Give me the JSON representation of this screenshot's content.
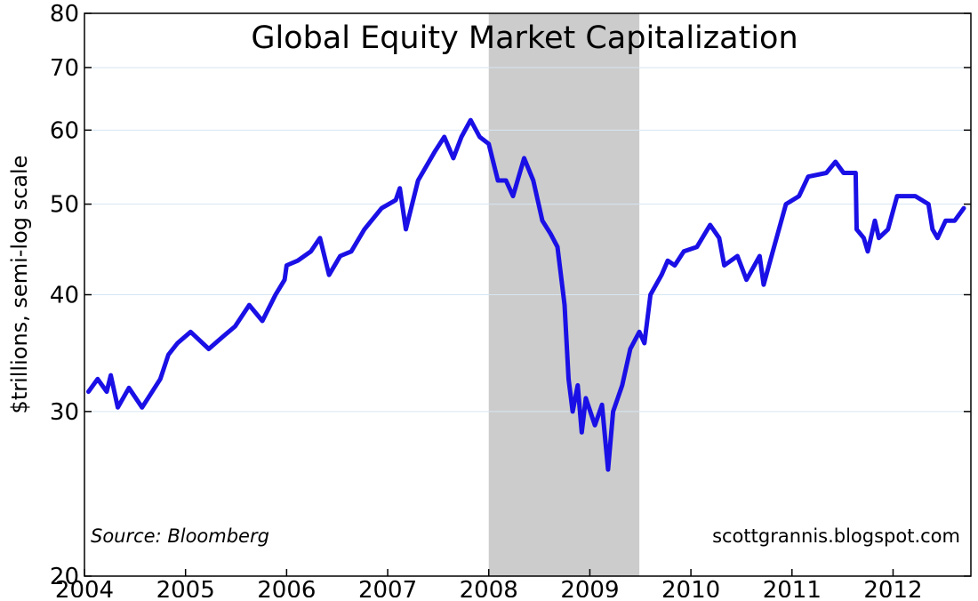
{
  "chart_data": {
    "type": "line",
    "title": "Global Equity Market Capitalization",
    "y_label": "$trillions, semi-log scale",
    "annotations": {
      "source": "Source: Bloomberg",
      "site": "scottgrannis.blogspot.com"
    },
    "log_scale": true,
    "grid": true,
    "color": "#1a10e6",
    "shade_color": "#cccccc",
    "grid_color": "#d6e6f2",
    "shaded_region": [
      2008.0,
      2009.49
    ],
    "xlim": [
      2004,
      2012.77
    ],
    "xticks": [
      2004,
      2005,
      2006,
      2007,
      2008,
      2009,
      2010,
      2011,
      2012
    ],
    "ylim": [
      20,
      80
    ],
    "yticks": [
      20,
      30,
      40,
      50,
      60,
      70,
      80
    ],
    "x": [
      2004.04,
      2004.13,
      2004.22,
      2004.26,
      2004.33,
      2004.44,
      2004.57,
      2004.75,
      2004.83,
      2004.92,
      2005.05,
      2005.23,
      2005.36,
      2005.49,
      2005.63,
      2005.76,
      2005.89,
      2005.98,
      2006.0,
      2006.11,
      2006.24,
      2006.33,
      2006.42,
      2006.53,
      2006.64,
      2006.77,
      2006.94,
      2007.08,
      2007.12,
      2007.18,
      2007.3,
      2007.47,
      2007.56,
      2007.65,
      2007.73,
      2007.82,
      2007.91,
      2008.0,
      2008.09,
      2008.17,
      2008.24,
      2008.35,
      2008.44,
      2008.53,
      2008.61,
      2008.68,
      2008.75,
      2008.79,
      2008.83,
      2008.88,
      2008.92,
      2008.96,
      2009.05,
      2009.12,
      2009.18,
      2009.23,
      2009.32,
      2009.4,
      2009.49,
      2009.54,
      2009.6,
      2009.71,
      2009.77,
      2009.84,
      2009.93,
      2010.06,
      2010.19,
      2010.28,
      2010.33,
      2010.46,
      2010.55,
      2010.68,
      2010.72,
      2010.81,
      2010.94,
      2011.07,
      2011.16,
      2011.34,
      2011.43,
      2011.51,
      2011.63,
      2011.64,
      2011.71,
      2011.75,
      2011.82,
      2011.86,
      2011.95,
      2012.04,
      2012.22,
      2012.35,
      2012.39,
      2012.44,
      2012.52,
      2012.61,
      2012.7
    ],
    "values": [
      31.5,
      32.5,
      31.5,
      32.8,
      30.3,
      31.8,
      30.3,
      32.5,
      34.5,
      35.5,
      36.5,
      35,
      36,
      37,
      39,
      37.5,
      40,
      41.5,
      43,
      43.5,
      44.5,
      46,
      42,
      44,
      44.5,
      47,
      49.5,
      50.5,
      52,
      47,
      53,
      57,
      59,
      56,
      59,
      61.5,
      59,
      58,
      53,
      53,
      51,
      56,
      53,
      48,
      46.5,
      45,
      39,
      32.5,
      30,
      32,
      28.5,
      31,
      29,
      30.5,
      26,
      30,
      32,
      35,
      36.5,
      35.5,
      40,
      42,
      43.5,
      43,
      44.5,
      45,
      47.5,
      46,
      43,
      44,
      41.5,
      44,
      41,
      44.5,
      50,
      51,
      53.5,
      54,
      55.5,
      54,
      54,
      47,
      46,
      44.5,
      48,
      46,
      47,
      51,
      51,
      50,
      47,
      46,
      48,
      48,
      49.5
    ]
  }
}
